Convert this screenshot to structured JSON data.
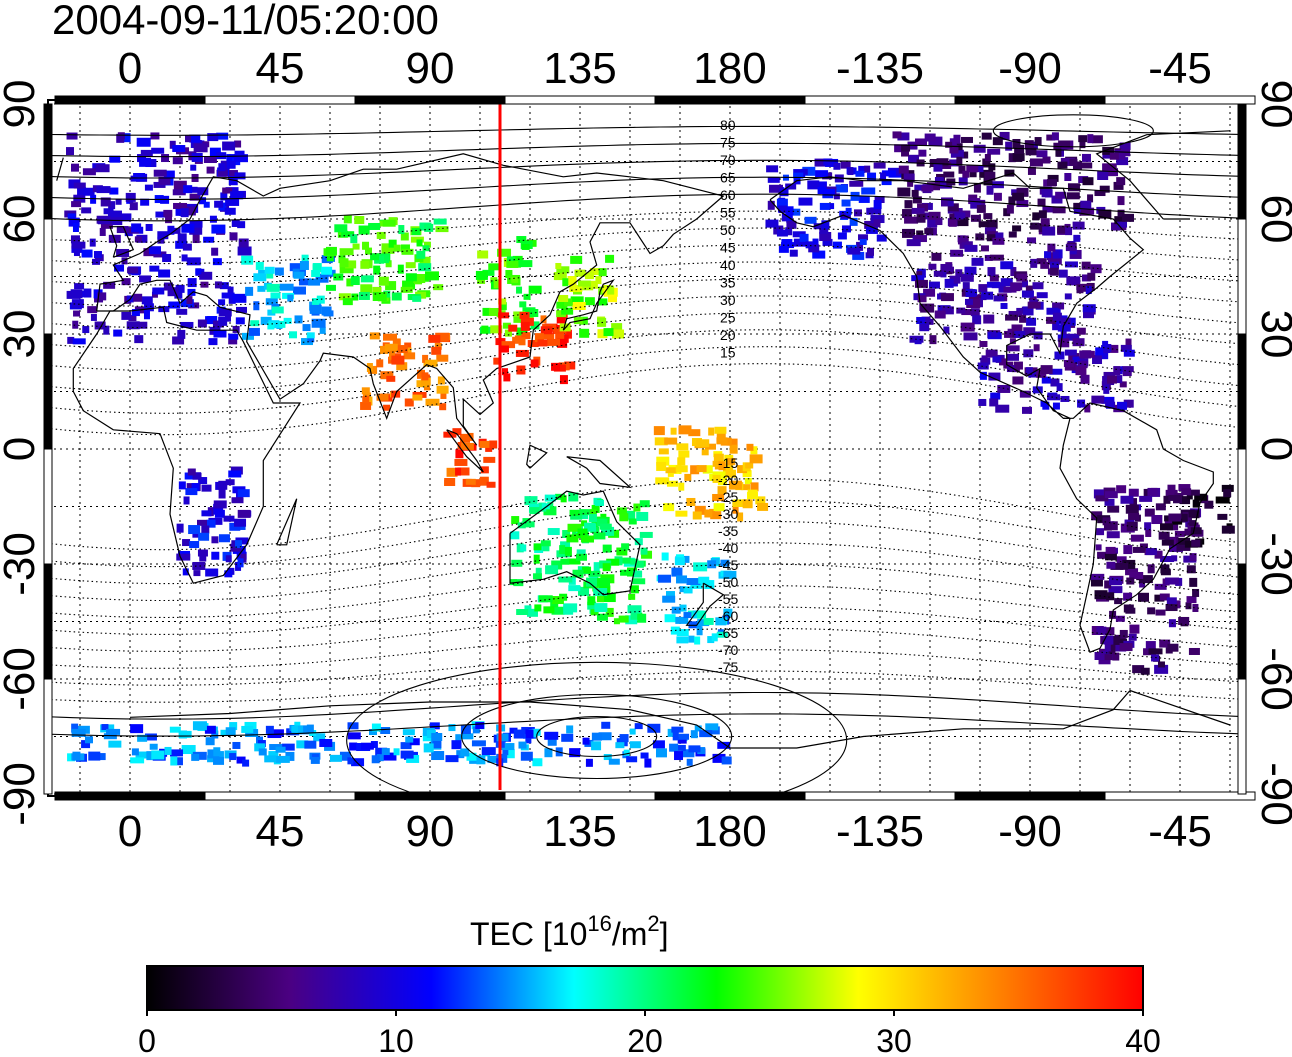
{
  "title": "2004-09-11/05:20:00",
  "longitude_ticks": [
    "0",
    "45",
    "90",
    "135",
    "180",
    "-135",
    "-90",
    "-45"
  ],
  "latitude_ticks": [
    "90",
    "60",
    "30",
    "0",
    "-30",
    "-60",
    "-90"
  ],
  "meridian_marker_longitude": 111,
  "colorbar": {
    "label": "TEC  [10",
    "label_exp": "16",
    "label_tail": "/m",
    "label_exp2": "2",
    "label_close": "]",
    "ticks": [
      "0",
      "10",
      "20",
      "30",
      "40"
    ],
    "range": [
      0,
      40
    ],
    "colors": [
      "#000000",
      "#4b0082",
      "#0000ff",
      "#00ffff",
      "#00ff00",
      "#ffff00",
      "#ff8000",
      "#ff0000"
    ]
  },
  "contour_labels_north": [
    "80",
    "75",
    "70",
    "65",
    "60",
    "55",
    "50",
    "45",
    "40",
    "35",
    "30",
    "25",
    "20",
    "15"
  ],
  "contour_labels_south": [
    "-15",
    "-20",
    "-25",
    "-30",
    "-35",
    "-40",
    "-45",
    "-50",
    "-55",
    "-60",
    "-65",
    "-70",
    "-75"
  ],
  "tec_regions": [
    {
      "name": "europe",
      "lon": [
        -18,
        35
      ],
      "lat": [
        28,
        82
      ],
      "tec": 9
    },
    {
      "name": "mideast",
      "lon": [
        35,
        60
      ],
      "lat": [
        28,
        50
      ],
      "tec": 16
    },
    {
      "name": "central-asia",
      "lon": [
        60,
        95
      ],
      "lat": [
        38,
        60
      ],
      "tec": 23
    },
    {
      "name": "china",
      "lon": [
        105,
        122
      ],
      "lat": [
        30,
        55
      ],
      "tec": 24
    },
    {
      "name": "east-china",
      "lon": [
        110,
        132
      ],
      "lat": [
        18,
        35
      ],
      "tec": 38
    },
    {
      "name": "japan",
      "lon": [
        128,
        148
      ],
      "lat": [
        30,
        50
      ],
      "tec": 26
    },
    {
      "name": "india",
      "lon": [
        70,
        95
      ],
      "lat": [
        10,
        30
      ],
      "tec": 35
    },
    {
      "name": "sumatra",
      "lon": [
        95,
        110
      ],
      "lat": [
        -10,
        5
      ],
      "tec": 37
    },
    {
      "name": "australia",
      "lon": [
        115,
        155
      ],
      "lat": [
        -45,
        -12
      ],
      "tec": 21
    },
    {
      "name": "new-zealand",
      "lon": [
        160,
        180
      ],
      "lat": [
        -50,
        -28
      ],
      "tec": 16
    },
    {
      "name": "pacific-south",
      "lon": [
        158,
        190
      ],
      "lat": [
        -18,
        5
      ],
      "tec": 31
    },
    {
      "name": "alaska",
      "lon": [
        192,
        230
      ],
      "lat": [
        50,
        75
      ],
      "tec": 10
    },
    {
      "name": "canada",
      "lon": [
        230,
        300
      ],
      "lat": [
        55,
        82
      ],
      "tec": 5
    },
    {
      "name": "usa",
      "lon": [
        235,
        290
      ],
      "lat": [
        28,
        55
      ],
      "tec": 7
    },
    {
      "name": "caribbean",
      "lon": [
        255,
        300
      ],
      "lat": [
        10,
        28
      ],
      "tec": 8
    },
    {
      "name": "south-america",
      "lon": [
        290,
        320
      ],
      "lat": [
        -58,
        -10
      ],
      "tec": 5
    },
    {
      "name": "brazil-coast",
      "lon": [
        310,
        330
      ],
      "lat": [
        -25,
        -10
      ],
      "tec": 3
    },
    {
      "name": "africa-south",
      "lon": [
        15,
        35
      ],
      "lat": [
        -35,
        -5
      ],
      "tec": 10
    },
    {
      "name": "antarctica",
      "lon": [
        -18,
        180
      ],
      "lat": [
        -82,
        -72
      ],
      "tec": 14
    }
  ]
}
